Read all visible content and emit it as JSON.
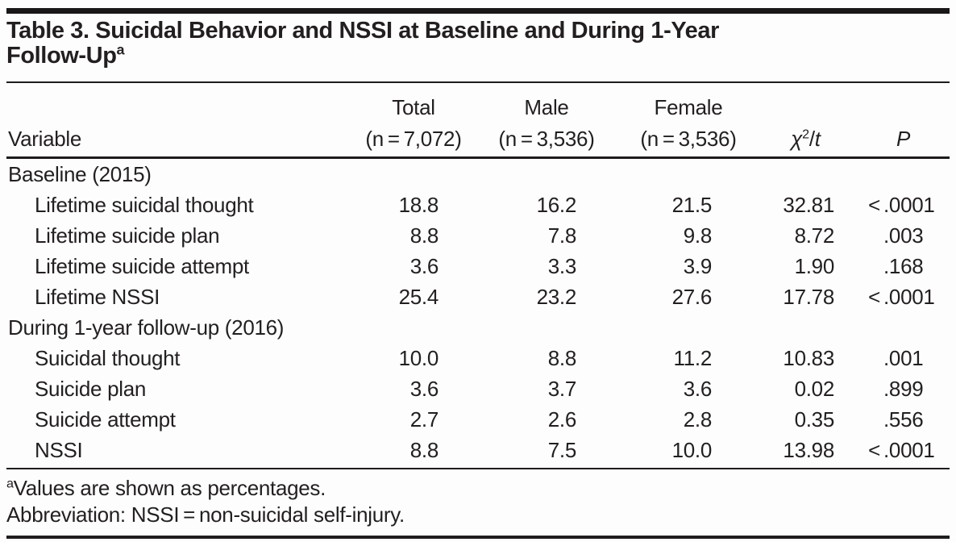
{
  "title": {
    "line1": "Table 3. Suicidal Behavior and NSSI at Baseline and During 1-Year",
    "line2": "Follow-Up",
    "superscript": "a"
  },
  "table": {
    "header": {
      "variable": "Variable",
      "groups": [
        {
          "label": "Total",
          "n": "(n = 7,072)"
        },
        {
          "label": "Male",
          "n": "(n = 3,536)"
        },
        {
          "label": "Female",
          "n": "(n = 3,536)"
        }
      ],
      "chi": {
        "base": "χ",
        "sup": "2",
        "sep": "/",
        "t": "t"
      },
      "p": "P"
    },
    "sections": [
      {
        "label": "Baseline (2015)",
        "rows": [
          {
            "variable": "Lifetime suicidal thought",
            "total": "18.8",
            "male": "16.2",
            "female": "21.5",
            "chi_t": "32.81",
            "p": "< .0001"
          },
          {
            "variable": "Lifetime suicide plan",
            "total": "8.8",
            "male": "7.8",
            "female": "9.8",
            "chi_t": "8.72",
            "p": ".003"
          },
          {
            "variable": "Lifetime suicide attempt",
            "total": "3.6",
            "male": "3.3",
            "female": "3.9",
            "chi_t": "1.90",
            "p": ".168"
          },
          {
            "variable": "Lifetime NSSI",
            "total": "25.4",
            "male": "23.2",
            "female": "27.6",
            "chi_t": "17.78",
            "p": "< .0001"
          }
        ]
      },
      {
        "label": "During 1-year follow-up (2016)",
        "rows": [
          {
            "variable": "Suicidal thought",
            "total": "10.0",
            "male": "8.8",
            "female": "11.2",
            "chi_t": "10.83",
            "p": ".001"
          },
          {
            "variable": "Suicide plan",
            "total": "3.6",
            "male": "3.7",
            "female": "3.6",
            "chi_t": "0.02",
            "p": ".899"
          },
          {
            "variable": "Suicide attempt",
            "total": "2.7",
            "male": "2.6",
            "female": "2.8",
            "chi_t": "0.35",
            "p": ".556"
          },
          {
            "variable": "NSSI",
            "total": "8.8",
            "male": "7.5",
            "female": "10.0",
            "chi_t": "13.98",
            "p": "< .0001"
          }
        ]
      }
    ]
  },
  "footnotes": [
    {
      "marker": "a",
      "text": "Values are shown as percentages."
    },
    {
      "marker": "",
      "text": "Abbreviation: NSSI = non-suicidal self-injury."
    }
  ],
  "colors": {
    "text": "#231f20",
    "rule": "#1f1c1d",
    "top_bar": "#1a1718",
    "background": "#fdfdfd"
  }
}
